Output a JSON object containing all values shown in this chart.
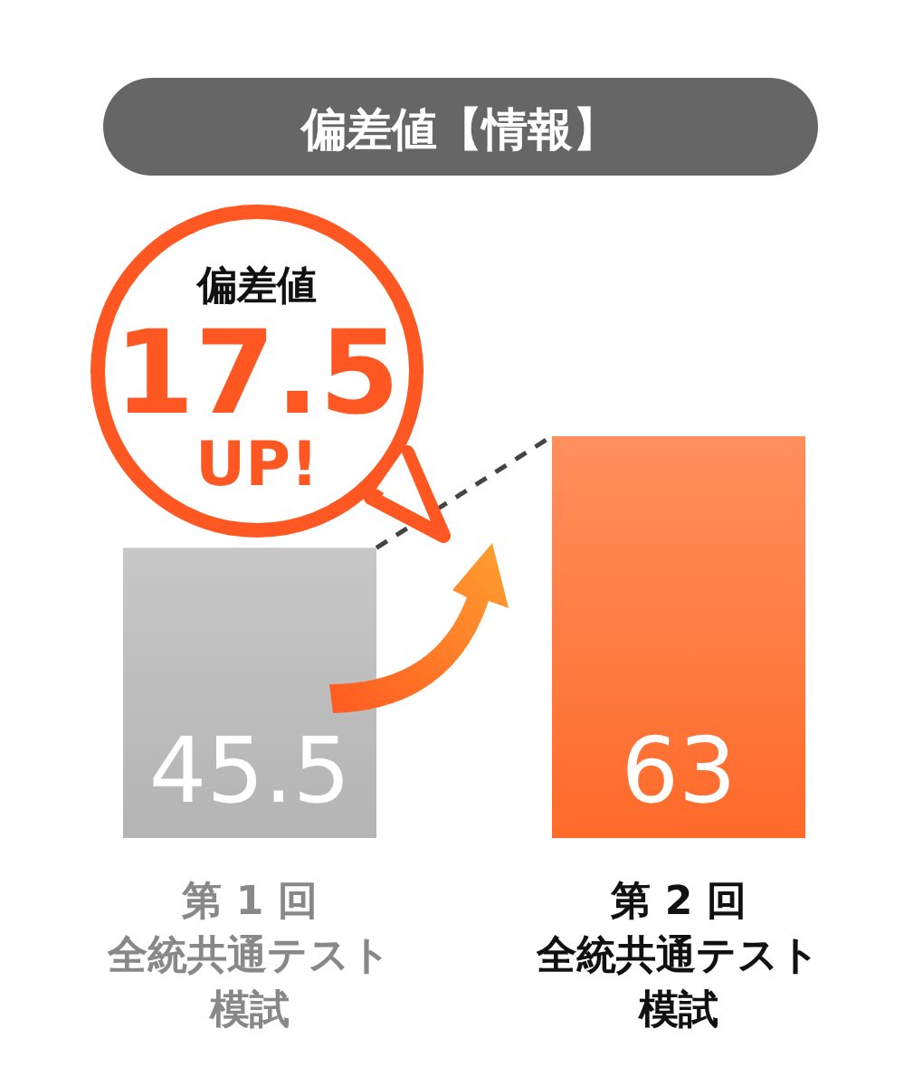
{
  "chart_data": {
    "type": "bar",
    "title": "偏差値【情報】",
    "categories": [
      "第 1 回全統共通テスト模試",
      "第 2 回全統共通テスト模試"
    ],
    "values": [
      45.5,
      63
    ],
    "colors": [
      "#b4b4b4",
      "#ff6a28"
    ],
    "data_labels": true,
    "annotations": [
      "偏差値\n17.5\nUP!"
    ]
  }
}
